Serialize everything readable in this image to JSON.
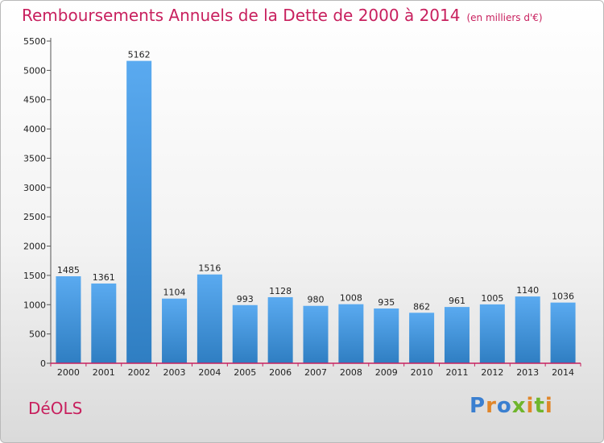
{
  "chart_data": {
    "type": "bar",
    "title": "Remboursements Annuels de la Dette de 2000 à 2014",
    "subtitle": "(en milliers d'€)",
    "categories": [
      "2000",
      "2001",
      "2002",
      "2003",
      "2004",
      "2005",
      "2006",
      "2007",
      "2008",
      "2009",
      "2010",
      "2011",
      "2012",
      "2013",
      "2014"
    ],
    "values": [
      1485,
      1361,
      5162,
      1104,
      1516,
      993,
      1128,
      980,
      1008,
      935,
      862,
      961,
      1005,
      1140,
      1036
    ],
    "ylim": [
      0,
      5500
    ],
    "yticks": [
      0,
      500,
      1000,
      1500,
      2000,
      2500,
      3000,
      3500,
      4000,
      4500,
      5000,
      5500
    ],
    "xlabel": "",
    "ylabel": "",
    "grid": false,
    "bar_color": "#4a9be0"
  },
  "footer": {
    "commune": "DéOLS",
    "brand": "Proxiti"
  },
  "colors": {
    "title": "#c8205e",
    "axis_x": "#c8205e",
    "axis_y": "#555555",
    "brand_letters": [
      "#3a7fd0",
      "#e0862a",
      "#3a7fd0",
      "#6fb52c",
      "#e0862a",
      "#6fb52c",
      "#e0862a"
    ]
  }
}
